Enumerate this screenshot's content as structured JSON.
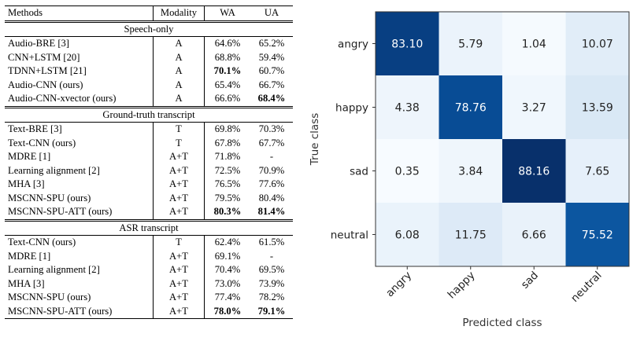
{
  "table": {
    "headers": [
      "Methods",
      "Modality",
      "WA",
      "UA"
    ],
    "sections": [
      {
        "title": "Speech-only",
        "rows": [
          {
            "method": "Audio-BRE [3]",
            "modality": "A",
            "wa": "64.6%",
            "ua": "65.2%"
          },
          {
            "method": "CNN+LSTM [20]",
            "modality": "A",
            "wa": "68.8%",
            "ua": "59.4%"
          },
          {
            "method": "TDNN+LSTM [21]",
            "modality": "A",
            "wa": "70.1%",
            "ua": "60.7%",
            "wa_bold": true
          },
          {
            "method": "Audio-CNN (ours)",
            "modality": "A",
            "wa": "65.4%",
            "ua": "66.7%"
          },
          {
            "method": "Audio-CNN-xvector (ours)",
            "modality": "A",
            "wa": "66.6%",
            "ua": "68.4%",
            "ua_bold": true
          }
        ]
      },
      {
        "title": "Ground-truth transcript",
        "rows": [
          {
            "method": "Text-BRE [3]",
            "modality": "T",
            "wa": "69.8%",
            "ua": "70.3%"
          },
          {
            "method": "Text-CNN (ours)",
            "modality": "T",
            "wa": "67.8%",
            "ua": "67.7%"
          },
          {
            "method": "MDRE [1]",
            "modality": "A+T",
            "wa": "71.8%",
            "ua": "-"
          },
          {
            "method": "Learning alignment [2]",
            "modality": "A+T",
            "wa": "72.5%",
            "ua": "70.9%"
          },
          {
            "method": "MHA [3]",
            "modality": "A+T",
            "wa": "76.5%",
            "ua": "77.6%"
          },
          {
            "method": "MSCNN-SPU (ours)",
            "modality": "A+T",
            "wa": "79.5%",
            "ua": "80.4%"
          },
          {
            "method": "MSCNN-SPU-ATT (ours)",
            "modality": "A+T",
            "wa": "80.3%",
            "ua": "81.4%",
            "wa_bold": true,
            "ua_bold": true
          }
        ]
      },
      {
        "title": "ASR transcript",
        "rows": [
          {
            "method": "Text-CNN (ours)",
            "modality": "T",
            "wa": "62.4%",
            "ua": "61.5%"
          },
          {
            "method": "MDRE [1]",
            "modality": "A+T",
            "wa": "69.1%",
            "ua": "-"
          },
          {
            "method": "Learning alignment [2]",
            "modality": "A+T",
            "wa": "70.4%",
            "ua": "69.5%"
          },
          {
            "method": "MHA [3]",
            "modality": "A+T",
            "wa": "73.0%",
            "ua": "73.9%"
          },
          {
            "method": "MSCNN-SPU (ours)",
            "modality": "A+T",
            "wa": "77.4%",
            "ua": "78.2%"
          },
          {
            "method": "MSCNN-SPU-ATT (ours)",
            "modality": "A+T",
            "wa": "78.0%",
            "ua": "79.1%",
            "wa_bold": true,
            "ua_bold": true
          }
        ]
      }
    ]
  },
  "chart_data": {
    "type": "heatmap",
    "title": "",
    "xlabel": "Predicted class",
    "ylabel": "True class",
    "x_categories": [
      "angry",
      "happy",
      "sad",
      "neutral"
    ],
    "y_categories": [
      "angry",
      "happy",
      "sad",
      "neutral"
    ],
    "values": [
      [
        83.1,
        5.79,
        1.04,
        10.07
      ],
      [
        4.38,
        78.76,
        3.27,
        13.59
      ],
      [
        0.35,
        3.84,
        88.16,
        7.65
      ],
      [
        6.08,
        11.75,
        6.66,
        75.52
      ]
    ],
    "value_labels": [
      [
        "83.10",
        "5.79",
        "1.04",
        "10.07"
      ],
      [
        "4.38",
        "78.76",
        "3.27",
        "13.59"
      ],
      [
        "0.35",
        "3.84",
        "88.16",
        "7.65"
      ],
      [
        "6.08",
        "11.75",
        "6.66",
        "75.52"
      ]
    ],
    "colormap": "Blues",
    "color_dark": "#08306b",
    "color_light": "#f7fbff"
  }
}
